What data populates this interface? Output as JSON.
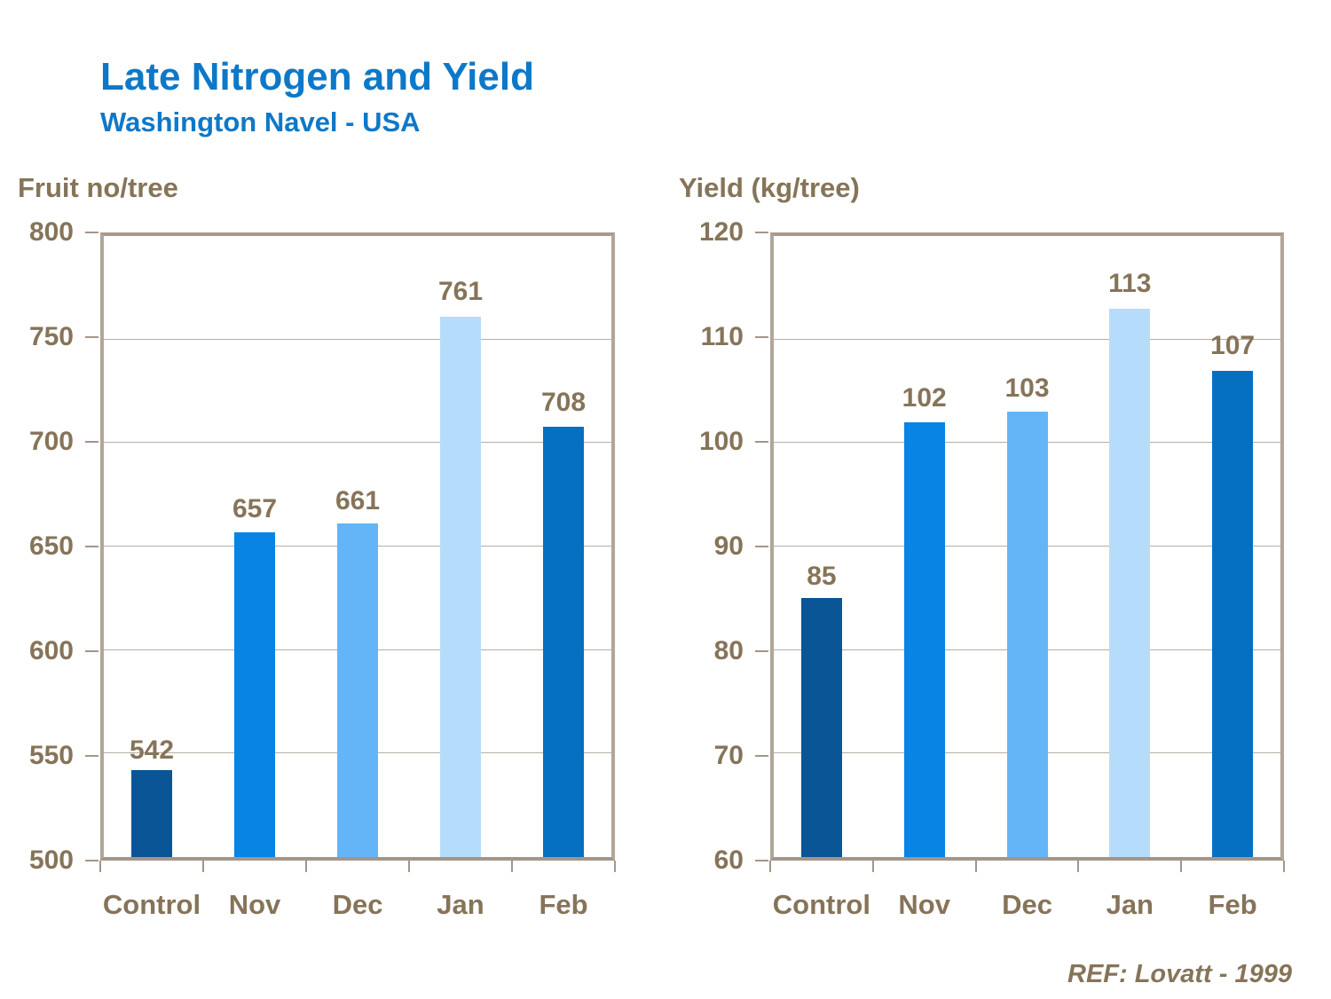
{
  "title": "Late Nitrogen and Yield",
  "subtitle": "Washington Navel - USA",
  "footer": {
    "ref": "REF: Lovatt - 1999"
  },
  "colors": {
    "title_blue": "#0E78C8",
    "text_brown": "#867459",
    "frame_tan": "#B2A698",
    "gridline": "#B8AFA5",
    "bar_control": "#0A5596",
    "bar_nov": "#0884E4",
    "bar_dec": "#63B5F7",
    "bar_jan": "#B5DDFB",
    "bar_feb": "#0570C0"
  },
  "chart_data": [
    {
      "type": "bar",
      "title": "Fruit no/tree",
      "categories": [
        "Control",
        "Nov",
        "Dec",
        "Jan",
        "Feb"
      ],
      "values": [
        542,
        657,
        661,
        761,
        708
      ],
      "value_labels": [
        "542",
        "657",
        "661",
        "761",
        "708"
      ],
      "ylim": [
        500,
        800
      ],
      "ytick_step": 50,
      "ytick_labels": [
        "800",
        "750",
        "700",
        "650",
        "600",
        "550",
        "500"
      ],
      "bar_colors": [
        "#0A5596",
        "#0884E4",
        "#63B5F7",
        "#B5DDFB",
        "#0570C0"
      ],
      "grid": true,
      "legend": "none",
      "xlabel": "",
      "ylabel": "Fruit no/tree"
    },
    {
      "type": "bar",
      "title": "Yield (kg/tree)",
      "categories": [
        "Control",
        "Nov",
        "Dec",
        "Jan",
        "Feb"
      ],
      "values": [
        85,
        102,
        103,
        113,
        107
      ],
      "value_labels": [
        "85",
        "102",
        "103",
        "113",
        "107"
      ],
      "ylim": [
        60,
        120
      ],
      "ytick_step": 10,
      "ytick_labels": [
        "120",
        "110",
        "100",
        "90",
        "80",
        "70",
        "60"
      ],
      "bar_colors": [
        "#0A5596",
        "#0884E4",
        "#63B5F7",
        "#B5DDFB",
        "#0570C0"
      ],
      "grid": true,
      "legend": "none",
      "xlabel": "",
      "ylabel": "Yield (kg/tree)"
    }
  ]
}
